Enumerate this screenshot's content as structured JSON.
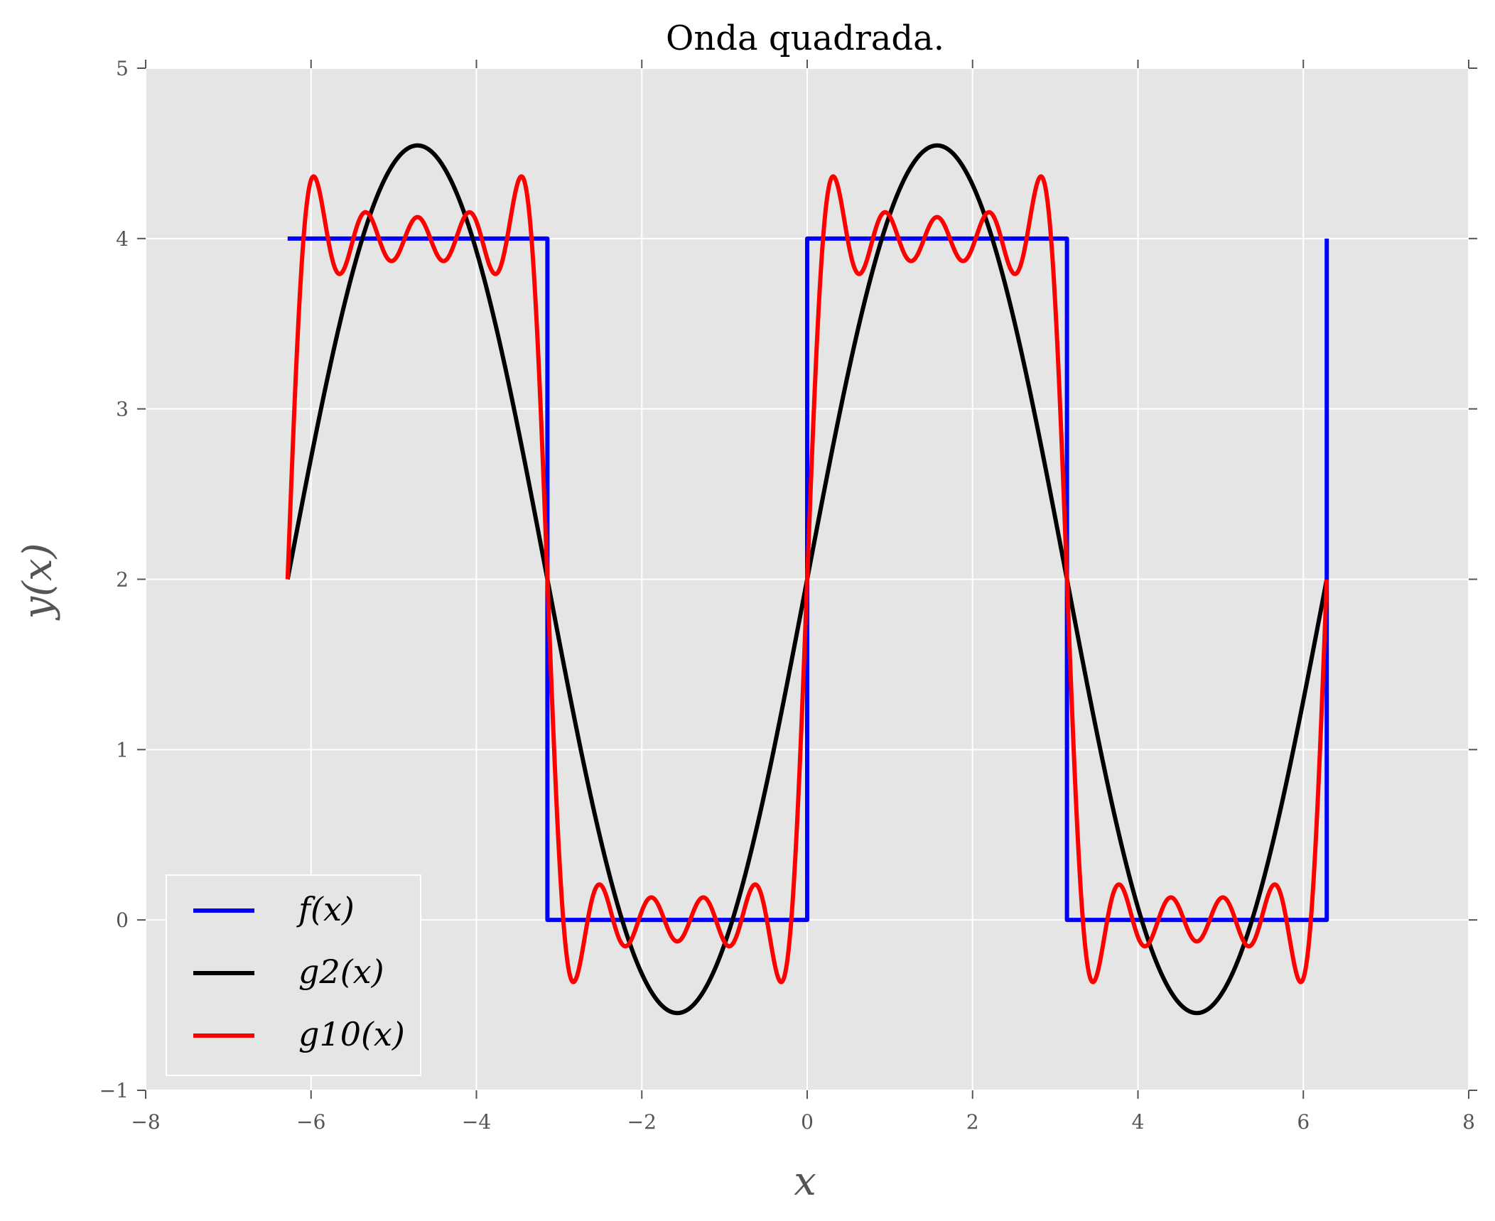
{
  "chart_data": {
    "type": "line",
    "title": "Onda quadrada.",
    "xlabel": "x",
    "ylabel": "y(x)",
    "xlim": [
      -8,
      8
    ],
    "ylim": [
      -1,
      5
    ],
    "xticks": [
      -8,
      -6,
      -4,
      -2,
      0,
      2,
      4,
      6,
      8
    ],
    "xtick_labels": [
      "−8",
      "−6",
      "−4",
      "−2",
      "0",
      "2",
      "4",
      "6",
      "8"
    ],
    "yticks": [
      -1,
      0,
      1,
      2,
      3,
      4,
      5
    ],
    "ytick_labels": [
      "−1",
      "0",
      "1",
      "2",
      "3",
      "4",
      "5"
    ],
    "grid": true,
    "legend_position": "lower-left",
    "background": "#e5e5e5",
    "x_range": [
      -6.2832,
      6.2832
    ],
    "series": [
      {
        "name": "f(x)",
        "color": "#0000ff",
        "description_formula": "square wave: 4 on (-2π,-π) and (0,π); 0 on (-π,0) and (π,2π)",
        "x": [
          -6.2832,
          -3.1416,
          -3.1416,
          0.0,
          0.0,
          3.1416,
          3.1416,
          6.2832,
          6.2832
        ],
        "y": [
          4,
          4,
          0,
          0,
          4,
          4,
          0,
          0,
          4
        ]
      },
      {
        "name": "g2(x)",
        "color": "#000000",
        "description_formula": "2 + (8/π) sin(x)",
        "harmonics": 1
      },
      {
        "name": "g10(x)",
        "color": "#ff0000",
        "description_formula": "2 + (8/π) Σ sin((2k-1)x)/(2k-1), k=1..5",
        "harmonics": 5
      }
    ]
  }
}
